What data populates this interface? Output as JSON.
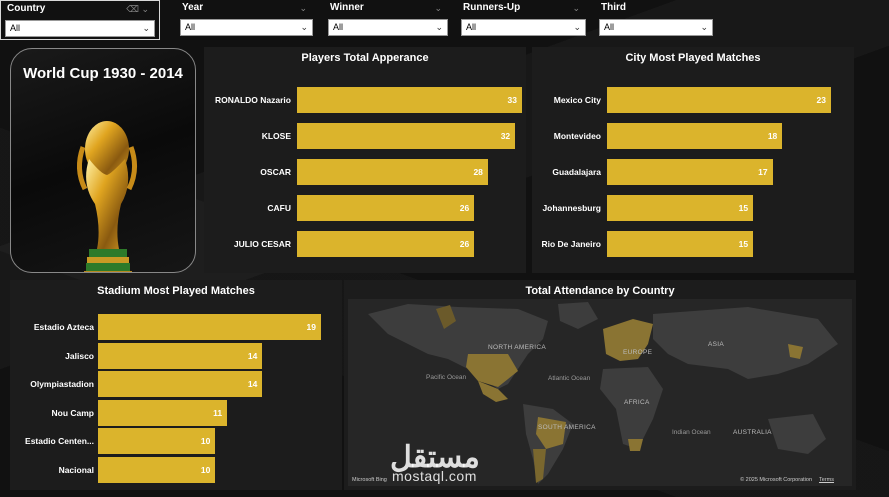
{
  "slicers": [
    {
      "label": "Country",
      "value": "All"
    },
    {
      "label": "Year",
      "value": "All"
    },
    {
      "label": "Winner",
      "value": "All"
    },
    {
      "label": "Runners-Up",
      "value": "All"
    },
    {
      "label": "Third",
      "value": "All"
    }
  ],
  "trophy_card": {
    "title": "World Cup 1930 - 2014"
  },
  "players": {
    "title": "Players Total Apperance",
    "rows": [
      {
        "name": "RONALDO Nazario",
        "value": 33
      },
      {
        "name": "KLOSE",
        "value": 32
      },
      {
        "name": "OSCAR",
        "value": 28
      },
      {
        "name": "CAFU",
        "value": 26
      },
      {
        "name": "JULIO CESAR",
        "value": 26
      }
    ]
  },
  "cities": {
    "title": "City Most Played Matches",
    "rows": [
      {
        "name": "Mexico City",
        "value": 23
      },
      {
        "name": "Montevideo",
        "value": 18
      },
      {
        "name": "Guadalajara",
        "value": 17
      },
      {
        "name": "Johannesburg",
        "value": 15
      },
      {
        "name": "Rio De Janeiro",
        "value": 15
      }
    ]
  },
  "stadiums": {
    "title": "Stadium Most Played Matches",
    "rows": [
      {
        "name": "Estadio Azteca",
        "value": 19
      },
      {
        "name": "Jalisco",
        "value": 14
      },
      {
        "name": "Olympiastadion",
        "value": 14
      },
      {
        "name": "Nou Camp",
        "value": 11
      },
      {
        "name": "Estadio Centen...",
        "value": 10
      },
      {
        "name": "Nacional",
        "value": 10
      }
    ]
  },
  "map": {
    "title": "Total Attendance by Country",
    "labels": {
      "north_america": "NORTH AMERICA",
      "south_america": "SOUTH AMERICA",
      "europe": "EUROPE",
      "asia": "ASIA",
      "africa": "AFRICA",
      "australia": "AUSTRALIA",
      "pacific": "Pacific Ocean",
      "atlantic": "Atlantic Ocean",
      "indian": "Indian Ocean"
    },
    "brand": "Microsoft Bing",
    "copyright": "© 2025 Microsoft Corporation",
    "terms": "Terms",
    "highlight_color": "#8a7433",
    "land_color": "#3d3d3d"
  },
  "watermark": {
    "arabic": "مستقل",
    "latin": "mostaql.com"
  },
  "colors": {
    "bar": "#dbb42c",
    "panel": "#1c1c1c"
  },
  "chart_data": [
    {
      "type": "bar",
      "title": "Players Total Apperance",
      "categories": [
        "RONALDO Nazario",
        "KLOSE",
        "OSCAR",
        "CAFU",
        "JULIO CESAR"
      ],
      "values": [
        33,
        32,
        28,
        26,
        26
      ]
    },
    {
      "type": "bar",
      "title": "City Most Played Matches",
      "categories": [
        "Mexico City",
        "Montevideo",
        "Guadalajara",
        "Johannesburg",
        "Rio De Janeiro"
      ],
      "values": [
        23,
        18,
        17,
        15,
        15
      ]
    },
    {
      "type": "bar",
      "title": "Stadium Most Played Matches",
      "categories": [
        "Estadio Azteca",
        "Jalisco",
        "Olympiastadion",
        "Nou Camp",
        "Estadio Centen...",
        "Nacional"
      ],
      "values": [
        19,
        14,
        14,
        11,
        10,
        10
      ]
    }
  ]
}
